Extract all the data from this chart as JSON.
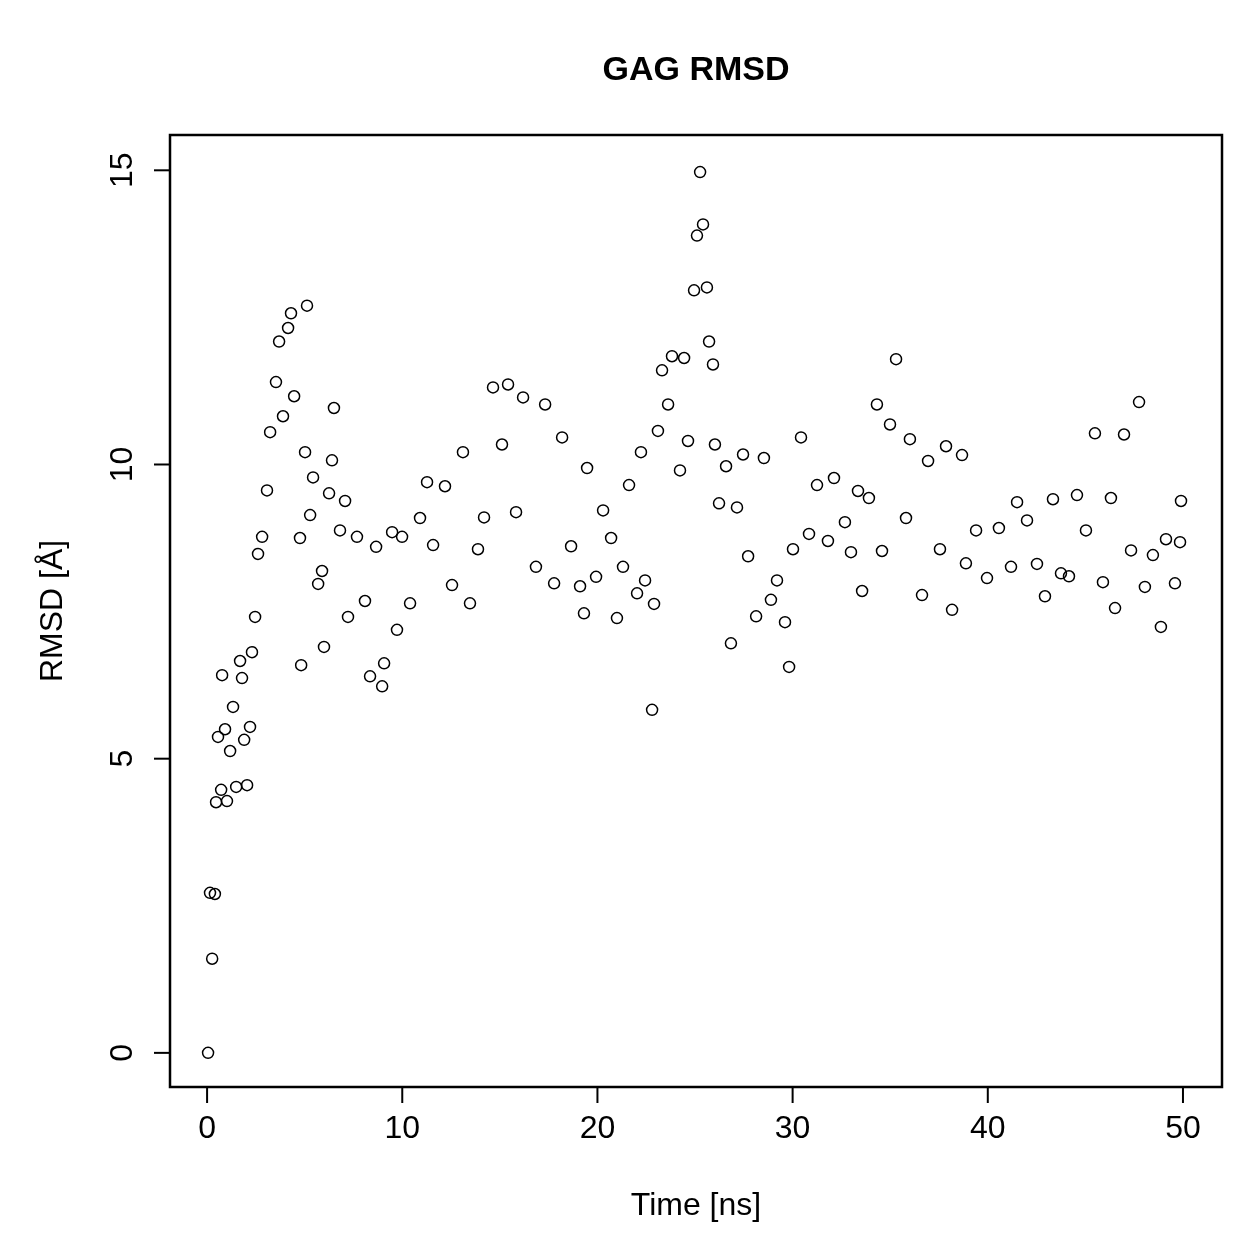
{
  "chart_data": {
    "type": "scatter",
    "title": "GAG RMSD",
    "xlabel": "Time [ns]",
    "ylabel": "RMSD [Å]",
    "xlim": [
      -1.9,
      52.0
    ],
    "ylim": [
      -0.58,
      15.6
    ],
    "xticks": [
      0,
      10,
      20,
      30,
      40,
      50
    ],
    "yticks": [
      0,
      5,
      10,
      15
    ],
    "grid": false,
    "marker": "circle",
    "series": [
      {
        "color": "#000000",
        "x": [
          0.05,
          0.26,
          0.15,
          0.4,
          0.46,
          0.72,
          0.56,
          0.77,
          0.92,
          1.02,
          1.18,
          1.33,
          1.49,
          1.69,
          1.79,
          1.9,
          2.05,
          2.2,
          2.3,
          2.46,
          2.61,
          2.82,
          3.07,
          3.23,
          3.53,
          3.69,
          3.89,
          4.15,
          4.3,
          4.46,
          4.76,
          4.82,
          5.02,
          5.12,
          5.28,
          5.43,
          5.69,
          5.89,
          5.99,
          6.25,
          6.4,
          6.5,
          6.81,
          7.07,
          7.22,
          7.68,
          8.09,
          8.35,
          8.66,
          8.97,
          9.07,
          9.48,
          9.73,
          9.99,
          10.4,
          10.91,
          11.27,
          11.58,
          12.19,
          12.55,
          13.11,
          13.47,
          13.88,
          14.19,
          14.65,
          15.11,
          15.42,
          15.83,
          16.19,
          16.85,
          17.32,
          17.78,
          18.19,
          18.65,
          19.11,
          19.31,
          19.47,
          19.93,
          20.29,
          20.7,
          21.0,
          21.31,
          21.62,
          22.03,
          22.23,
          22.44,
          22.8,
          22.9,
          23.1,
          23.31,
          23.62,
          23.82,
          24.23,
          24.44,
          24.64,
          24.95,
          25.1,
          25.26,
          25.41,
          25.61,
          25.72,
          25.92,
          26.02,
          26.23,
          26.59,
          26.84,
          27.15,
          27.46,
          27.72,
          28.13,
          28.53,
          28.89,
          29.2,
          29.61,
          29.82,
          30.02,
          30.43,
          30.84,
          31.25,
          31.81,
          32.12,
          32.68,
          32.99,
          33.35,
          33.56,
          33.91,
          34.32,
          34.58,
          34.99,
          35.3,
          35.81,
          36.01,
          36.63,
          36.94,
          37.55,
          37.86,
          38.17,
          38.68,
          38.88,
          39.4,
          39.96,
          40.57,
          41.19,
          41.5,
          42.01,
          42.52,
          42.93,
          43.34,
          43.75,
          44.16,
          44.57,
          45.03,
          45.49,
          45.9,
          46.31,
          46.52,
          46.98,
          47.34,
          47.75,
          48.05,
          48.46,
          48.87,
          49.13,
          49.59,
          49.9,
          49.85
        ],
        "values": [
          0,
          1.6,
          2.72,
          2.7,
          4.26,
          4.47,
          5.37,
          6.42,
          5.5,
          4.28,
          5.13,
          5.88,
          4.52,
          6.66,
          6.37,
          5.32,
          4.55,
          5.54,
          6.81,
          7.41,
          8.48,
          8.77,
          9.56,
          10.55,
          11.4,
          12.09,
          10.82,
          12.32,
          12.57,
          11.16,
          8.75,
          6.59,
          10.21,
          12.7,
          9.14,
          9.78,
          7.97,
          8.19,
          6.9,
          9.51,
          10.07,
          10.96,
          8.88,
          9.38,
          7.41,
          8.77,
          7.68,
          6.4,
          8.6,
          6.23,
          6.62,
          8.85,
          7.19,
          8.77,
          7.64,
          9.09,
          9.7,
          8.63,
          9.63,
          7.95,
          10.21,
          7.64,
          8.56,
          9.1,
          11.31,
          10.34,
          11.36,
          9.19,
          11.14,
          8.26,
          11.02,
          7.98,
          10.46,
          8.61,
          7.93,
          7.47,
          9.94,
          8.09,
          9.22,
          8.75,
          7.39,
          8.26,
          9.65,
          7.81,
          10.21,
          8.03,
          5.83,
          7.63,
          10.57,
          11.6,
          11.02,
          11.84,
          9.9,
          11.81,
          10.4,
          12.96,
          13.89,
          14.97,
          14.08,
          13.01,
          12.09,
          11.7,
          10.34,
          9.34,
          9.97,
          6.96,
          9.27,
          10.17,
          8.44,
          7.42,
          10.11,
          7.7,
          8.03,
          7.32,
          6.56,
          8.56,
          10.46,
          8.82,
          9.65,
          8.7,
          9.77,
          9.02,
          8.51,
          9.55,
          7.85,
          9.43,
          11.02,
          8.53,
          10.68,
          11.79,
          9.09,
          10.43,
          7.78,
          10.06,
          8.56,
          10.31,
          7.53,
          10.16,
          8.32,
          8.88,
          8.07,
          8.92,
          8.26,
          9.36,
          9.05,
          8.31,
          7.76,
          9.41,
          8.15,
          8.1,
          9.48,
          8.88,
          10.53,
          8.0,
          9.43,
          7.56,
          10.51,
          8.54,
          11.06,
          7.92,
          8.46,
          7.24,
          8.73,
          7.98,
          9.38,
          8.68
        ]
      }
    ]
  }
}
